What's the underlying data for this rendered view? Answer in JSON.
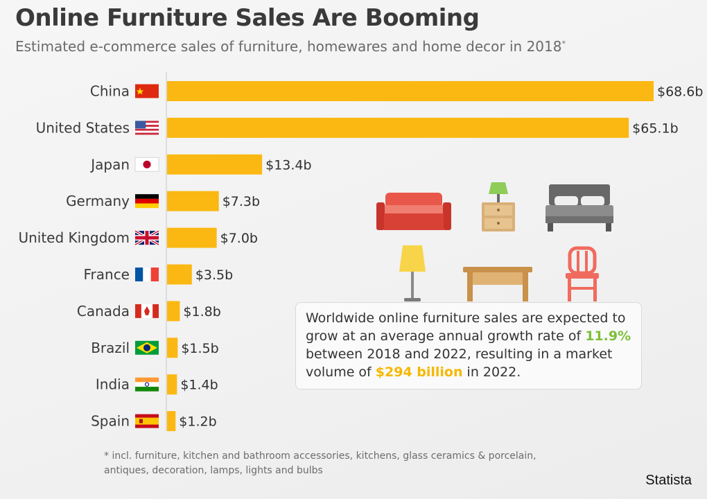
{
  "chart_data": {
    "type": "bar",
    "orientation": "horizontal",
    "title": "Online Furniture Sales Are Booming",
    "subtitle": "Estimated e-commerce sales of furniture, homewares and home decor in 2018",
    "subtitle_marker": "*",
    "categories": [
      "China",
      "United States",
      "Japan",
      "Germany",
      "United Kingdom",
      "France",
      "Canada",
      "Brazil",
      "India",
      "Spain"
    ],
    "values": [
      68.6,
      65.1,
      13.4,
      7.3,
      7.0,
      3.5,
      1.8,
      1.5,
      1.4,
      1.2
    ],
    "value_labels": [
      "$68.6b",
      "$65.1b",
      "$13.4b",
      "$7.3b",
      "$7.0b",
      "$3.5b",
      "$1.8b",
      "$1.5b",
      "$1.4b",
      "$1.2b"
    ],
    "flags": [
      "china-flag-icon",
      "us-flag-icon",
      "japan-flag-icon",
      "germany-flag-icon",
      "uk-flag-icon",
      "france-flag-icon",
      "canada-flag-icon",
      "brazil-flag-icon",
      "india-flag-icon",
      "spain-flag-icon"
    ],
    "xlim": [
      0,
      68.6
    ],
    "grid": false,
    "bar_color": "#fbb813"
  },
  "illustrations": [
    "sofa-icon",
    "nightstand-lamp-icon",
    "bed-icon",
    "floor-lamp-icon",
    "table-icon",
    "chair-icon"
  ],
  "callout": {
    "text_before": "Worldwide online furniture sales are expected to grow at an average annual growth rate of ",
    "growth_rate": "11.9%",
    "text_middle": " between 2018 and 2022, resulting in a market volume of ",
    "market_volume": "$294 billion",
    "text_after": " in 2022.",
    "highlight_green": "#7cbf3a",
    "highlight_orange": "#f5b800"
  },
  "footnote": "* incl. furniture, kitchen and bathroom accessories, kitchens, glass ceramics & porcelain, antiques, decoration, lamps, lights and bulbs",
  "source": "Statista"
}
